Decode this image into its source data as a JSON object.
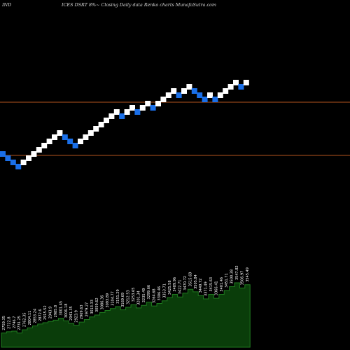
{
  "header": {
    "left": "IND",
    "center": "ICES DSRT 8%~  Closing Daily data  Renko  charts MunafaSutra.com"
  },
  "colors": {
    "background": "#000000",
    "up_brick": "#ffffff",
    "down_brick": "#1a6fe8",
    "reference_line": "#b4531e",
    "volume_fill": "#0a3d0a",
    "volume_stroke": "#1f7a1f",
    "label_text": "#ffffff"
  },
  "chart_data": {
    "type": "renko",
    "reference_lines": [
      {
        "level": "upper"
      },
      {
        "level": "lower"
      }
    ],
    "bricks": [
      {
        "dir": "down",
        "level": 0
      },
      {
        "dir": "down",
        "level": -1
      },
      {
        "dir": "down",
        "level": -2
      },
      {
        "dir": "down",
        "level": -3
      },
      {
        "dir": "up",
        "level": -2
      },
      {
        "dir": "up",
        "level": -1
      },
      {
        "dir": "up",
        "level": 0
      },
      {
        "dir": "up",
        "level": 1
      },
      {
        "dir": "up",
        "level": 2
      },
      {
        "dir": "up",
        "level": 3
      },
      {
        "dir": "up",
        "level": 4
      },
      {
        "dir": "up",
        "level": 5
      },
      {
        "dir": "down",
        "level": 4
      },
      {
        "dir": "down",
        "level": 3
      },
      {
        "dir": "down",
        "level": 2
      },
      {
        "dir": "up",
        "level": 3
      },
      {
        "dir": "up",
        "level": 4
      },
      {
        "dir": "up",
        "level": 5
      },
      {
        "dir": "up",
        "level": 6
      },
      {
        "dir": "up",
        "level": 7
      },
      {
        "dir": "up",
        "level": 8
      },
      {
        "dir": "up",
        "level": 9
      },
      {
        "dir": "up",
        "level": 10
      },
      {
        "dir": "down",
        "level": 9
      },
      {
        "dir": "up",
        "level": 10
      },
      {
        "dir": "up",
        "level": 11
      },
      {
        "dir": "down",
        "level": 10
      },
      {
        "dir": "up",
        "level": 11
      },
      {
        "dir": "up",
        "level": 12
      },
      {
        "dir": "down",
        "level": 11
      },
      {
        "dir": "up",
        "level": 12
      },
      {
        "dir": "up",
        "level": 13
      },
      {
        "dir": "up",
        "level": 14
      },
      {
        "dir": "up",
        "level": 15
      },
      {
        "dir": "down",
        "level": 14
      },
      {
        "dir": "up",
        "level": 15
      },
      {
        "dir": "up",
        "level": 16
      },
      {
        "dir": "down",
        "level": 15
      },
      {
        "dir": "down",
        "level": 14
      },
      {
        "dir": "down",
        "level": 13
      },
      {
        "dir": "up",
        "level": 14
      },
      {
        "dir": "down",
        "level": 13
      },
      {
        "dir": "up",
        "level": 14
      },
      {
        "dir": "up",
        "level": 15
      },
      {
        "dir": "up",
        "level": 16
      },
      {
        "dir": "up",
        "level": 17
      },
      {
        "dir": "down",
        "level": 16
      },
      {
        "dir": "up",
        "level": 17
      }
    ],
    "volume": [
      22,
      24,
      25,
      22,
      27,
      30,
      33,
      36,
      38,
      40,
      42,
      45,
      41,
      37,
      34,
      39,
      43,
      47,
      50,
      54,
      57,
      60,
      63,
      58,
      62,
      66,
      61,
      65,
      70,
      64,
      68,
      72,
      77,
      82,
      78,
      84,
      90,
      86,
      80,
      75,
      82,
      76,
      82,
      88,
      94,
      100,
      92,
      97
    ],
    "volume_labels": [
      "2759.35",
      "2722.8",
      "2746.7",
      "2731.25",
      "2762.35",
      "2804.11",
      "2853.24",
      "2872.6",
      "2915.52",
      "2943.9",
      "2985.8",
      "3001.45",
      "3006.18",
      "2941.35",
      "2923.9",
      "2969.63",
      "2979.27",
      "3013.33",
      "3059.62",
      "3086.36",
      "3093.89",
      "3104.77",
      "3151.29",
      "3169.69",
      "3212.53",
      "3253.65",
      "3201.34",
      "3235.49",
      "3299.66",
      "3264.68",
      "3306.46",
      "3353.71",
      "3425.58",
      "3489.96",
      "3422.71",
      "3470.72",
      "3515.69",
      "3505.84",
      "3449.72",
      "3371.49",
      "3415.63",
      "3366.41",
      "3401.46",
      "3451.71",
      "3500.38",
      "3547.82",
      "3506.97",
      "3545.49"
    ]
  }
}
